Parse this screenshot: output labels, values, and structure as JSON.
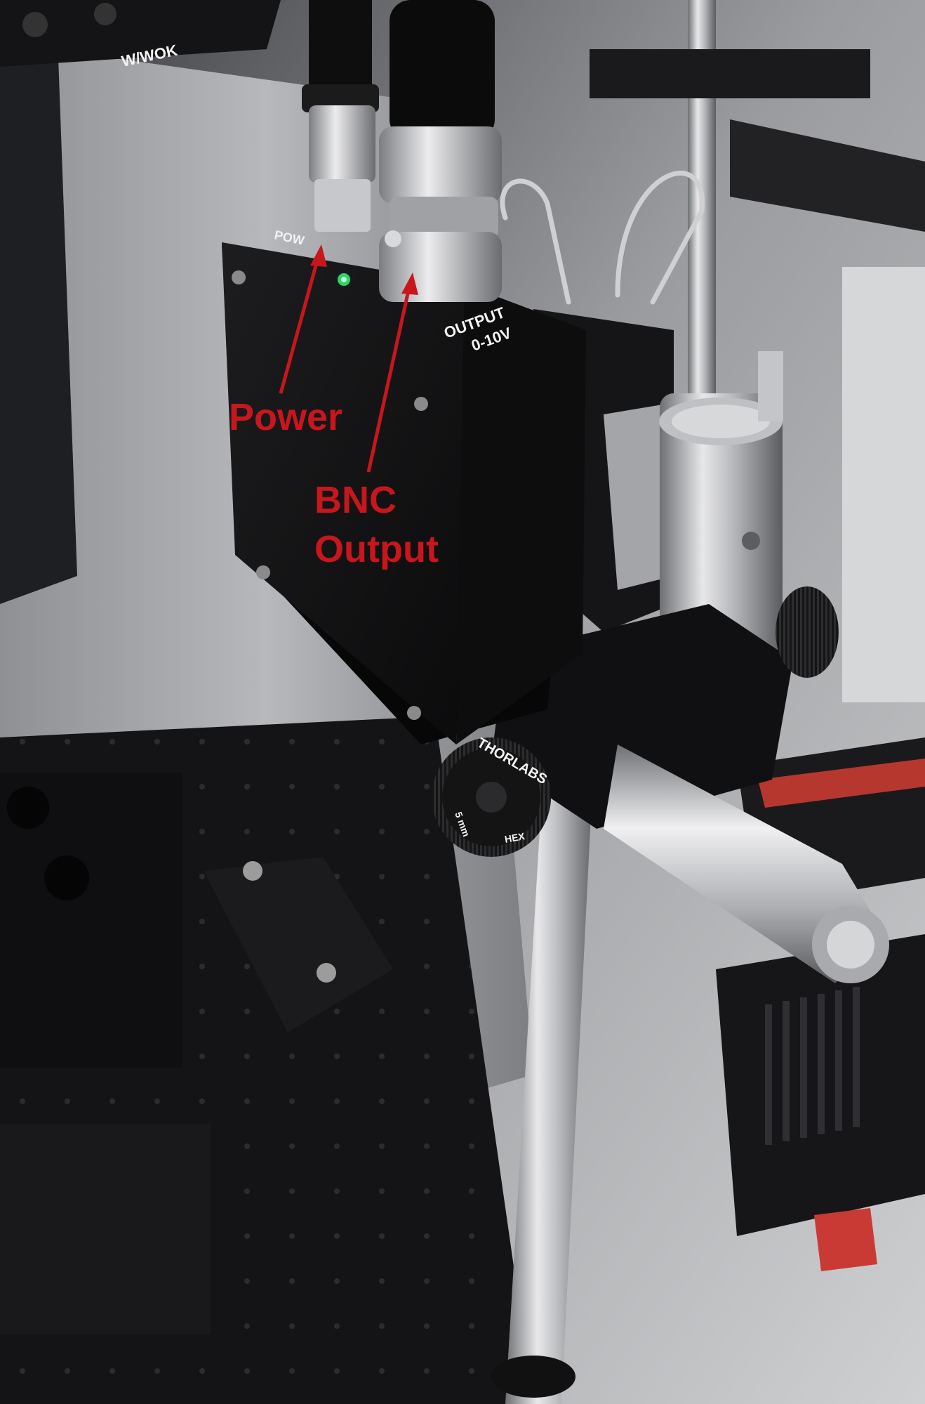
{
  "device_labels": {
    "power_port": "POW",
    "output_line1": "OUTPUT",
    "output_line2": "0-10V"
  },
  "knob": {
    "brand": "THORLABS",
    "size": "5 mm",
    "type": "HEX"
  },
  "background_label": "W/WOK",
  "annotations": {
    "power": "Power",
    "bnc_line1": "BNC",
    "bnc_line2": "Output"
  },
  "colors": {
    "annotation": "#c8161d",
    "device_body": "#141414",
    "metal": "#c9c9c9",
    "status_led": "#2fd36b"
  }
}
